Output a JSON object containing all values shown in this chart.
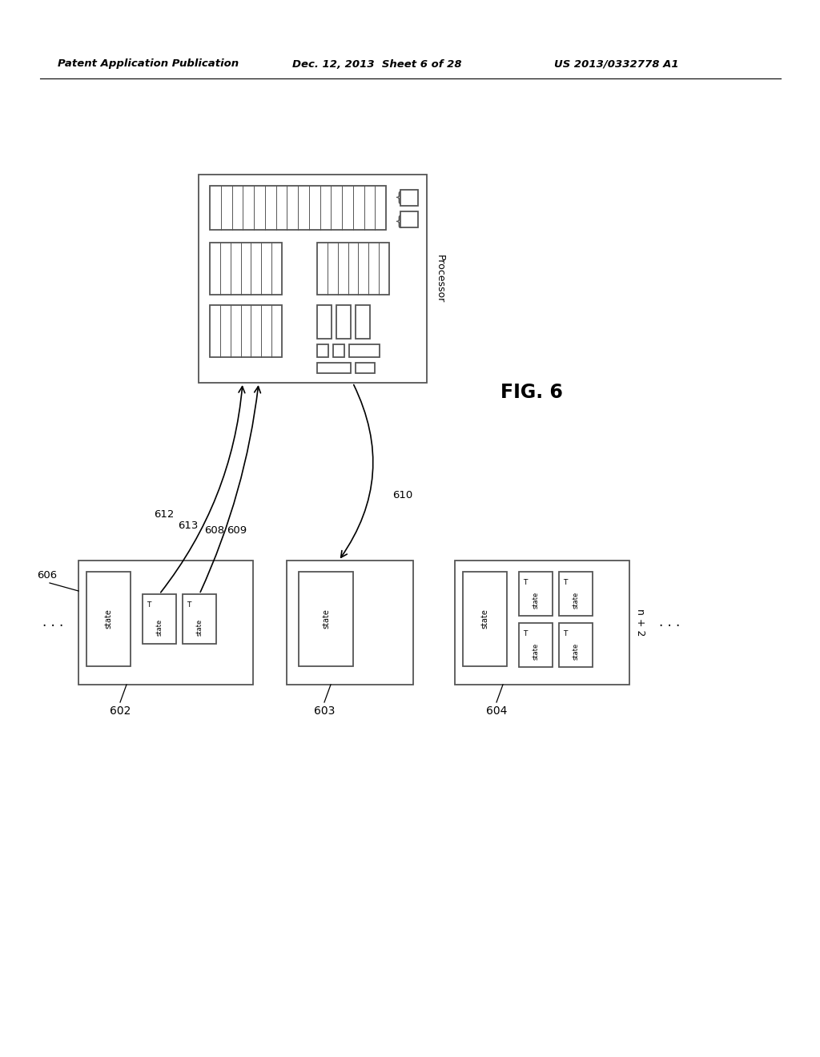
{
  "bg_color": "#ffffff",
  "header_left": "Patent Application Publication",
  "header_mid": "Dec. 12, 2013  Sheet 6 of 28",
  "header_right": "US 2013/0332778 A1",
  "fig_label": "FIG. 6",
  "processor_label": "Processor",
  "box602": "602",
  "box603": "603",
  "box604": "604",
  "label606": "606",
  "label612": "612",
  "label613": "613",
  "label608": "608",
  "label609": "609",
  "label610": "610",
  "label_np2": "n + 2"
}
